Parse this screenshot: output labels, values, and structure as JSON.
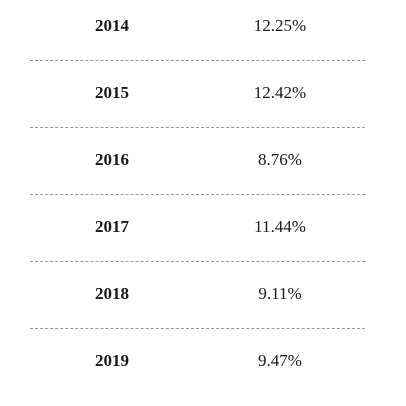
{
  "rows": [
    {
      "year": "2014",
      "rate": "12.25%"
    },
    {
      "year": "2015",
      "rate": "12.42%"
    },
    {
      "year": "2016",
      "rate": "8.76%"
    },
    {
      "year": "2017",
      "rate": "11.44%"
    },
    {
      "year": "2018",
      "rate": "9.11%"
    },
    {
      "year": "2019",
      "rate": "9.47%"
    }
  ]
}
